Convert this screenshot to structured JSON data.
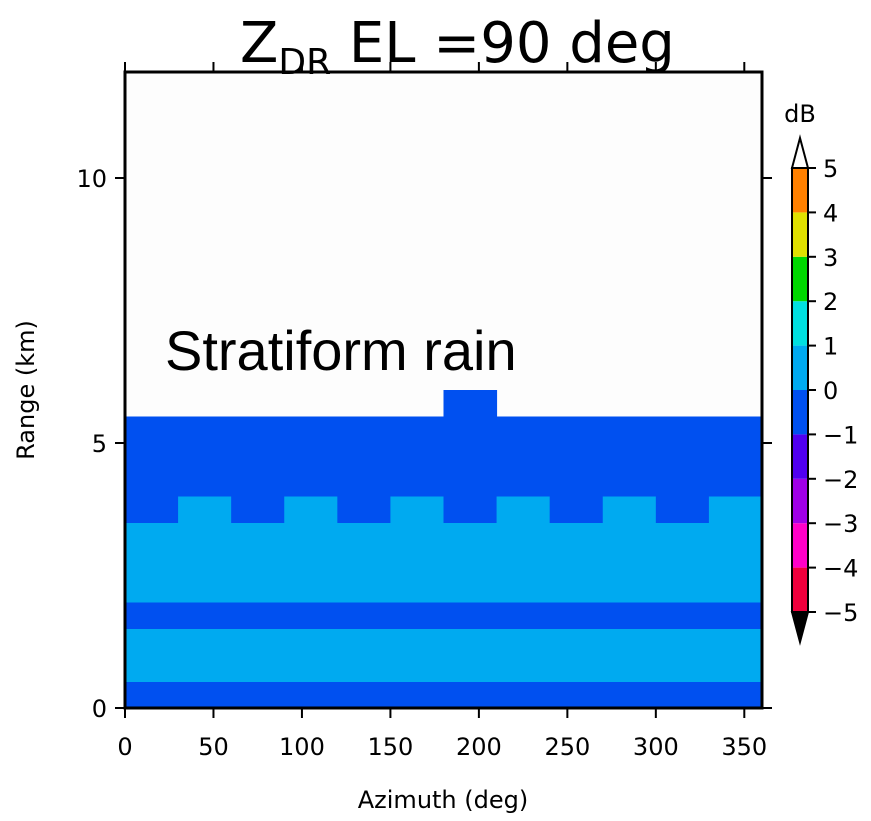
{
  "chart_data": {
    "type": "heatmap",
    "title": "Z",
    "title_subscript": "DR",
    "title_suffix": " EL =90 deg",
    "annotation": "Stratiform rain",
    "x_label": "Azimuth (deg)",
    "y_label": "Range (km)",
    "colorbar_label": "dB",
    "xlim": [
      0,
      360
    ],
    "ylim": [
      0,
      12
    ],
    "xticks": [
      0,
      50,
      100,
      150,
      200,
      250,
      300,
      350
    ],
    "yticks": [
      0,
      5,
      10
    ],
    "x_edges": [
      0,
      30,
      60,
      90,
      120,
      150,
      180,
      210,
      240,
      270,
      300,
      330,
      360
    ],
    "y_edges": [
      0,
      0.5,
      1,
      1.5,
      2,
      2.5,
      3,
      3.5,
      4,
      4.5,
      5,
      5.5,
      6
    ],
    "z": [
      [
        -0.4,
        -0.3,
        -0.5,
        -0.2,
        -0.4,
        -0.3,
        -0.5,
        -0.4,
        -0.3,
        -0.2,
        -0.4,
        -0.3
      ],
      [
        0.3,
        0.2,
        0.3,
        0.4,
        0.2,
        0.3,
        0.2,
        0.3,
        0.4,
        0.2,
        0.3,
        0.3
      ],
      [
        0.2,
        0.3,
        0.2,
        0.2,
        0.3,
        0.2,
        0.3,
        0.2,
        0.2,
        0.3,
        0.2,
        0.2
      ],
      [
        -0.6,
        -0.5,
        -0.7,
        -0.6,
        -0.5,
        -0.6,
        -0.7,
        -0.5,
        -0.6,
        -0.6,
        -0.5,
        -0.7
      ],
      [
        0.1,
        0.2,
        0.1,
        0.2,
        0.1,
        0.1,
        0.2,
        0.1,
        0.2,
        0.1,
        0.1,
        0.2
      ],
      [
        0.2,
        0.1,
        0.2,
        0.1,
        0.2,
        0.2,
        0.1,
        0.2,
        0.1,
        0.2,
        0.2,
        0.1
      ],
      [
        0.1,
        0.2,
        0.1,
        0.1,
        0.2,
        0.1,
        0.2,
        0.1,
        0.2,
        0.1,
        0.2,
        0.1
      ],
      [
        -0.2,
        0.1,
        -0.1,
        0.1,
        -0.2,
        0.1,
        -0.1,
        0.1,
        -0.2,
        0.1,
        -0.1,
        0.1
      ],
      [
        -0.3,
        -0.2,
        -0.4,
        -0.3,
        -0.2,
        -0.3,
        -0.4,
        -0.2,
        -0.3,
        -0.3,
        -0.2,
        -0.4
      ],
      [
        -0.4,
        -0.3,
        -0.2,
        -0.4,
        -0.3,
        -0.2,
        -0.4,
        -0.3,
        -0.2,
        -0.4,
        -0.3,
        -0.2
      ],
      [
        -0.6,
        -0.5,
        -0.7,
        -0.5,
        -0.6,
        -0.5,
        -0.7,
        -0.5,
        -0.6,
        -0.7,
        -0.5,
        -0.6
      ],
      [
        null,
        null,
        null,
        null,
        null,
        null,
        -0.5,
        null,
        null,
        null,
        null,
        null
      ]
    ],
    "clim": [
      -5,
      5
    ],
    "colors": [
      "#f0003c",
      "#ff00c8",
      "#a000e6",
      "#5000f0",
      "#0050f0",
      "#00aaf0",
      "#00e0e0",
      "#00d800",
      "#e0e000",
      "#ff8000"
    ],
    "cticks": [
      {
        "value": -5,
        "label": "−5"
      },
      {
        "value": -4,
        "label": "−4"
      },
      {
        "value": -3,
        "label": "−3"
      },
      {
        "value": -2,
        "label": "−2"
      },
      {
        "value": -1,
        "label": "−1"
      },
      0,
      1,
      2,
      3,
      4,
      5
    ]
  }
}
